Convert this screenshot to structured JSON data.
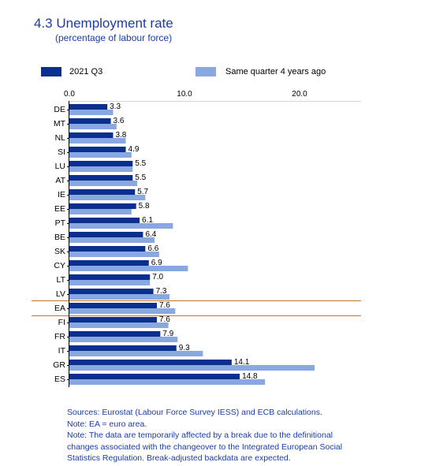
{
  "header": {
    "title": "4.3 Unemployment rate",
    "subtitle": "(percentage of labour force)"
  },
  "legend": {
    "items": [
      {
        "label": "2021 Q3",
        "color": "#0b2f8f"
      },
      {
        "label": "Same quarter 4 years ago",
        "color": "#8aa8e0"
      }
    ]
  },
  "chart_data": {
    "type": "bar",
    "orientation": "horizontal",
    "title": "4.3 Unemployment rate",
    "subtitle": "(percentage of labour force)",
    "categories": [
      "DE",
      "MT",
      "NL",
      "SI",
      "LU",
      "AT",
      "IE",
      "EE",
      "PT",
      "BE",
      "SK",
      "CY",
      "LT",
      "LV",
      "EA",
      "FI",
      "FR",
      "IT",
      "GR",
      "ES"
    ],
    "series": [
      {
        "name": "2021 Q3",
        "color": "#0b2f8f",
        "values": [
          3.3,
          3.6,
          3.8,
          4.9,
          5.5,
          5.5,
          5.7,
          5.8,
          6.1,
          6.4,
          6.6,
          6.9,
          7.0,
          7.3,
          7.6,
          7.6,
          7.9,
          9.3,
          14.1,
          14.8
        ]
      },
      {
        "name": "Same quarter 4 years ago",
        "color": "#8aa8e0",
        "values": [
          3.8,
          4.1,
          4.9,
          5.4,
          5.5,
          5.9,
          6.6,
          5.4,
          9.0,
          7.4,
          7.8,
          10.3,
          7.0,
          8.7,
          9.2,
          8.6,
          9.4,
          11.6,
          21.3,
          17.0
        ]
      }
    ],
    "xlim": [
      0,
      25
    ],
    "xticks": [
      0,
      10,
      20
    ],
    "xtick_labels": [
      "0.0",
      "10.0",
      "20.0"
    ],
    "highlight_category": "EA",
    "highlight_color": "#c07828",
    "data_labels": true,
    "legend_position": "top"
  },
  "footer": {
    "lines": [
      "Sources: Eurostat (Labour Force Survey IESS) and ECB calculations.",
      "Note: EA = euro area.",
      " Note: The data are temporarily affected by a break due to the definitional",
      "changes associated with the changeover to the Integrated European Social",
      "Statistics Regulation. Break-adjusted backdata are expected."
    ]
  }
}
